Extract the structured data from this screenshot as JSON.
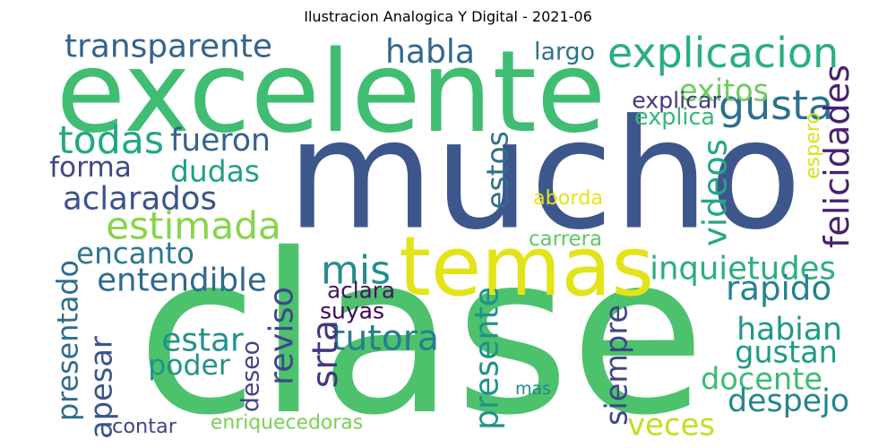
{
  "chart_data": {
    "type": "wordcloud",
    "title": "Ilustracion Analogica Y Digital - 2021-06",
    "background": "#ffffff",
    "words": [
      {
        "text": "clase",
        "color": "#4cc26c"
      },
      {
        "text": "mucho",
        "color": "#3d578d"
      },
      {
        "text": "excelente",
        "color": "#40bd72"
      },
      {
        "text": "temas",
        "color": "#e2e418"
      },
      {
        "text": "explicacion",
        "color": "#29af7f"
      },
      {
        "text": "gusta",
        "color": "#2c718e"
      },
      {
        "text": "exitos",
        "color": "#6ccd5a"
      },
      {
        "text": "felicidades",
        "color": "#482071"
      },
      {
        "text": "transparente",
        "color": "#33638d"
      },
      {
        "text": "habla",
        "color": "#30688e"
      },
      {
        "text": "largo",
        "color": "#2c738e"
      },
      {
        "text": "explicar",
        "color": "#443a83"
      },
      {
        "text": "explica",
        "color": "#35b779"
      },
      {
        "text": "espero",
        "color": "#d2e21b"
      },
      {
        "text": "todas",
        "color": "#22a884"
      },
      {
        "text": "fueron",
        "color": "#33628d"
      },
      {
        "text": "dudas",
        "color": "#1fa088"
      },
      {
        "text": "forma",
        "color": "#3f4889"
      },
      {
        "text": "aclarados",
        "color": "#3b528b"
      },
      {
        "text": "estimada",
        "color": "#86d549"
      },
      {
        "text": "estos",
        "color": "#2e6f8e"
      },
      {
        "text": "aborda",
        "color": "#e5e419"
      },
      {
        "text": "videos",
        "color": "#22a785"
      },
      {
        "text": "carrera",
        "color": "#5ec962"
      },
      {
        "text": "encanto",
        "color": "#2a788e"
      },
      {
        "text": "mis",
        "color": "#228d8d"
      },
      {
        "text": "inquietudes",
        "color": "#29af7f"
      },
      {
        "text": "entendible",
        "color": "#31688e"
      },
      {
        "text": "rapido",
        "color": "#26828e"
      },
      {
        "text": "presentado",
        "color": "#2f6c8e"
      },
      {
        "text": "aclara",
        "color": "#471164"
      },
      {
        "text": "suyas",
        "color": "#440154"
      },
      {
        "text": "habian",
        "color": "#1f998a"
      },
      {
        "text": "estar",
        "color": "#21918c"
      },
      {
        "text": "gustan",
        "color": "#1e9b8a"
      },
      {
        "text": "tutora",
        "color": "#287c8e"
      },
      {
        "text": "poder",
        "color": "#20928c"
      },
      {
        "text": "deseo",
        "color": "#414487"
      },
      {
        "text": "reviso",
        "color": "#3e4989"
      },
      {
        "text": "srta",
        "color": "#453581"
      },
      {
        "text": "docente",
        "color": "#3bbb75"
      },
      {
        "text": "presente",
        "color": "#21918c"
      },
      {
        "text": "siempre",
        "color": "#404588"
      },
      {
        "text": "apesar",
        "color": "#39558c"
      },
      {
        "text": "despejo",
        "color": "#25858e"
      },
      {
        "text": "mas",
        "color": "#23888e"
      },
      {
        "text": "veces",
        "color": "#c2df23"
      },
      {
        "text": "contar",
        "color": "#404588"
      },
      {
        "text": "enriquecedoras",
        "color": "#7ad151"
      }
    ]
  }
}
